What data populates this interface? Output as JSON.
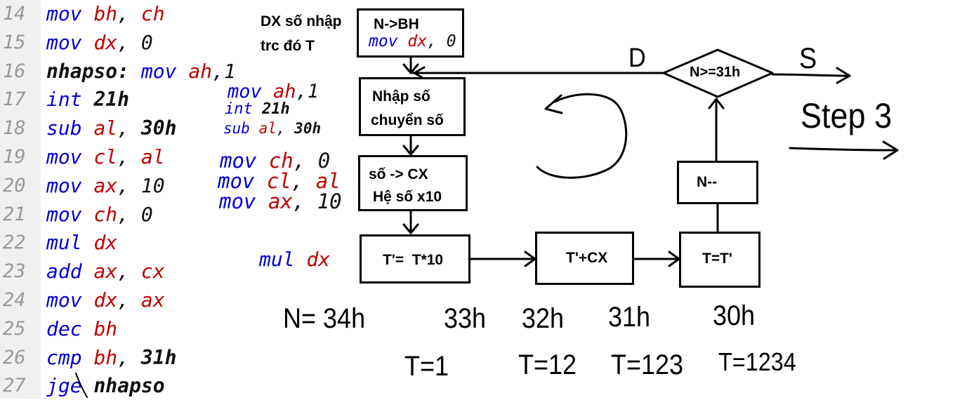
{
  "code": {
    "lines": [
      {
        "num": "14",
        "parts": [
          {
            "t": "mov ",
            "c": "kw"
          },
          {
            "t": "bh",
            "c": "rg"
          },
          {
            "t": ", ",
            "c": "bl"
          },
          {
            "t": "ch",
            "c": "rg"
          }
        ]
      },
      {
        "num": "15",
        "parts": [
          {
            "t": "mov ",
            "c": "kw"
          },
          {
            "t": "dx",
            "c": "rg"
          },
          {
            "t": ", ",
            "c": "bl"
          },
          {
            "t": "0",
            "c": "bl"
          }
        ]
      },
      {
        "num": "16",
        "parts": [
          {
            "t": "nhapso:",
            "c": "lbl"
          },
          {
            "t": " mov ",
            "c": "kw"
          },
          {
            "t": "ah",
            "c": "rg"
          },
          {
            "t": ",1",
            "c": "bl"
          }
        ]
      },
      {
        "num": "17",
        "parts": [
          {
            "t": "int ",
            "c": "kw"
          },
          {
            "t": "21h",
            "c": "bd"
          }
        ]
      },
      {
        "num": "18",
        "parts": [
          {
            "t": "sub ",
            "c": "kw"
          },
          {
            "t": "al",
            "c": "rg"
          },
          {
            "t": ", ",
            "c": "bl"
          },
          {
            "t": "30h",
            "c": "bd"
          }
        ]
      },
      {
        "num": "19",
        "parts": [
          {
            "t": "mov ",
            "c": "kw"
          },
          {
            "t": "cl",
            "c": "rg"
          },
          {
            "t": ", ",
            "c": "bl"
          },
          {
            "t": "al",
            "c": "rg"
          }
        ]
      },
      {
        "num": "20",
        "parts": [
          {
            "t": "mov ",
            "c": "kw"
          },
          {
            "t": "ax",
            "c": "rg"
          },
          {
            "t": ", ",
            "c": "bl"
          },
          {
            "t": "10",
            "c": "bl"
          }
        ]
      },
      {
        "num": "21",
        "parts": [
          {
            "t": "mov ",
            "c": "kw"
          },
          {
            "t": "ch",
            "c": "rg"
          },
          {
            "t": ", ",
            "c": "bl"
          },
          {
            "t": "0",
            "c": "bl"
          }
        ]
      },
      {
        "num": "22",
        "parts": [
          {
            "t": "mul ",
            "c": "kw"
          },
          {
            "t": "dx",
            "c": "rg"
          }
        ]
      },
      {
        "num": "23",
        "parts": [
          {
            "t": "add ",
            "c": "kw"
          },
          {
            "t": "ax",
            "c": "rg"
          },
          {
            "t": ", ",
            "c": "bl"
          },
          {
            "t": "cx",
            "c": "rg"
          }
        ]
      },
      {
        "num": "24",
        "parts": [
          {
            "t": "mov ",
            "c": "kw"
          },
          {
            "t": "dx",
            "c": "rg"
          },
          {
            "t": ", ",
            "c": "bl"
          },
          {
            "t": "ax",
            "c": "rg"
          }
        ]
      },
      {
        "num": "25",
        "parts": [
          {
            "t": "dec ",
            "c": "kw"
          },
          {
            "t": "bh",
            "c": "rg"
          }
        ]
      },
      {
        "num": "26",
        "parts": [
          {
            "t": "cmp ",
            "c": "kw"
          },
          {
            "t": "bh",
            "c": "rg"
          },
          {
            "t": ", ",
            "c": "bl"
          },
          {
            "t": "31h",
            "c": "bd"
          }
        ]
      },
      {
        "num": "27",
        "parts": [
          {
            "t": "jge ",
            "c": "kw"
          },
          {
            "t": "nhapso",
            "c": "lbl"
          }
        ]
      }
    ]
  },
  "notes": {
    "block1": [
      {
        "parts": [
          {
            "t": "mov ",
            "c": "kw"
          },
          {
            "t": "ah",
            "c": "rg"
          },
          {
            "t": ",1",
            "c": "bl"
          }
        ]
      },
      {
        "parts": [
          {
            "t": "int ",
            "c": "kw"
          },
          {
            "t": "21h",
            "c": "bd"
          }
        ]
      },
      {
        "parts": [
          {
            "t": "sub ",
            "c": "kw"
          },
          {
            "t": "al",
            "c": "rg"
          },
          {
            "t": ", ",
            "c": "bl"
          },
          {
            "t": "30h",
            "c": "bd"
          }
        ]
      }
    ],
    "block2": [
      {
        "parts": [
          {
            "t": "mov ",
            "c": "kw"
          },
          {
            "t": "ch",
            "c": "rg"
          },
          {
            "t": ", ",
            "c": "bl"
          },
          {
            "t": "0",
            "c": "bl"
          }
        ]
      },
      {
        "parts": [
          {
            "t": "mov ",
            "c": "kw"
          },
          {
            "t": "cl",
            "c": "rg"
          },
          {
            "t": ", ",
            "c": "bl"
          },
          {
            "t": "al",
            "c": "rg"
          }
        ]
      },
      {
        "parts": [
          {
            "t": "mov ",
            "c": "kw"
          },
          {
            "t": "ax",
            "c": "rg"
          },
          {
            "t": ", ",
            "c": "bl"
          },
          {
            "t": "10",
            "c": "bl"
          }
        ]
      }
    ],
    "mul": [
      {
        "t": "mul ",
        "c": "kw"
      },
      {
        "t": "dx",
        "c": "rg"
      }
    ],
    "box_code": [
      {
        "t": "mov ",
        "c": "kw"
      },
      {
        "t": "dx",
        "c": "rg"
      },
      {
        "t": ", ",
        "c": "bl"
      },
      {
        "t": "0",
        "c": "bl"
      }
    ]
  },
  "dx_note": {
    "line1": "DX số nhập",
    "line2": "trc đó T"
  },
  "flow": {
    "n_to_bh": "N->BH",
    "nhap_so_1": "Nhập số",
    "nhap_so_2": "chuyển số",
    "so_cx_1": "số -> CX",
    "so_cx_2": "Hệ số x10",
    "t_mul": "T'=  T*10",
    "t_add": "T'+CX",
    "t_set": "T=T'",
    "n_dec": "N--",
    "cond": "N>=31h"
  },
  "hand": {
    "d_label": "D",
    "s_label": "S",
    "step3": "Step 3",
    "n_values": [
      "N= 34h",
      "33h",
      "32h",
      "31h",
      "30h"
    ],
    "t_values": [
      "T=1",
      "T=12",
      "T=123",
      "T=1234"
    ]
  }
}
